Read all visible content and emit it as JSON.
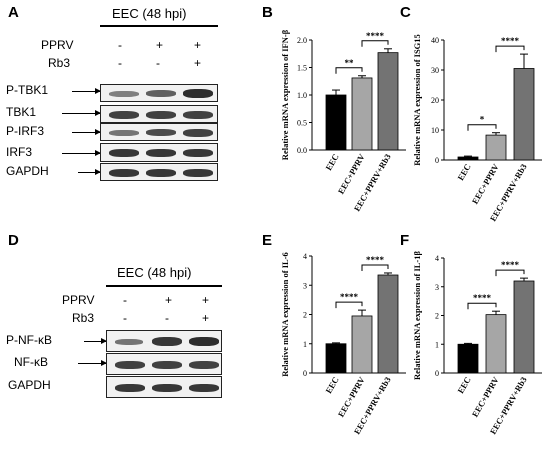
{
  "panels": {
    "A": {
      "letter": "A",
      "header": "EEC (48 hpi)",
      "treatments": [
        {
          "name": "PPRV",
          "signs": [
            "-",
            "+",
            "+"
          ]
        },
        {
          "name": "Rb3",
          "signs": [
            "-",
            "-",
            "+"
          ]
        }
      ],
      "rows": [
        "P-TBK1",
        "TBK1",
        "P-IRF3",
        "IRF3",
        "GAPDH"
      ]
    },
    "D": {
      "letter": "D",
      "header": "EEC (48 hpi)",
      "treatments": [
        {
          "name": "PPRV",
          "signs": [
            "-",
            "+",
            "+"
          ]
        },
        {
          "name": "Rb3",
          "signs": [
            "-",
            "-",
            "+"
          ]
        }
      ],
      "rows": [
        "P-NF-κB",
        "NF-κB",
        "GAPDH"
      ]
    }
  },
  "chart_data": [
    {
      "panel": "B",
      "type": "bar",
      "categories": [
        "EEC",
        "EEC+PPRV",
        "EEC+PPRV+Rb3"
      ],
      "values": [
        1.0,
        1.31,
        1.77
      ],
      "errors": [
        0.09,
        0.04,
        0.07
      ],
      "ylabel": "Relative mRNA expression of IFN-β",
      "ylim": [
        0,
        2.0
      ],
      "yticks": [
        "0.0",
        "0.5",
        "1.0",
        "1.5",
        "2.0"
      ],
      "colors": [
        "#000000",
        "#a6a6a6",
        "#737373"
      ],
      "annotations": [
        {
          "from": 0,
          "to": 1,
          "label": "**"
        },
        {
          "from": 1,
          "to": 2,
          "label": "****"
        }
      ]
    },
    {
      "panel": "C",
      "type": "bar",
      "categories": [
        "EEC",
        "EEC+PPRV",
        "EEC+PPRV+Rb3"
      ],
      "values": [
        1.0,
        8.3,
        30.5
      ],
      "errors": [
        0.3,
        0.8,
        4.8
      ],
      "ylabel": "Relative mRNA expression of ISG15",
      "ylim": [
        0,
        40
      ],
      "yticks": [
        "0",
        "10",
        "20",
        "30",
        "40"
      ],
      "colors": [
        "#000000",
        "#a6a6a6",
        "#737373"
      ],
      "annotations": [
        {
          "from": 0,
          "to": 1,
          "label": "*"
        },
        {
          "from": 1,
          "to": 2,
          "label": "****"
        }
      ]
    },
    {
      "panel": "E",
      "type": "bar",
      "categories": [
        "EEC",
        "EEC+PPRV",
        "EEC+PPRV+Rb3"
      ],
      "values": [
        1.0,
        1.95,
        3.35
      ],
      "errors": [
        0.03,
        0.2,
        0.07
      ],
      "ylabel": "Relative mRNA expression of IL-6",
      "ylim": [
        0,
        4
      ],
      "yticks": [
        "0",
        "1",
        "2",
        "3",
        "4"
      ],
      "colors": [
        "#000000",
        "#a6a6a6",
        "#737373"
      ],
      "annotations": [
        {
          "from": 0,
          "to": 1,
          "label": "****"
        },
        {
          "from": 1,
          "to": 2,
          "label": "****"
        }
      ]
    },
    {
      "panel": "F",
      "type": "bar",
      "categories": [
        "EEC",
        "EEC+PPRV",
        "EEC+PPRV+Rb3"
      ],
      "values": [
        1.0,
        2.03,
        3.2
      ],
      "errors": [
        0.03,
        0.12,
        0.1
      ],
      "ylabel": "Relative mRNA expression of IL-1β",
      "ylim": [
        0,
        4
      ],
      "yticks": [
        "0",
        "1",
        "2",
        "3",
        "4"
      ],
      "colors": [
        "#000000",
        "#a6a6a6",
        "#737373"
      ],
      "annotations": [
        {
          "from": 0,
          "to": 1,
          "label": "****"
        },
        {
          "from": 1,
          "to": 2,
          "label": "****"
        }
      ]
    }
  ]
}
